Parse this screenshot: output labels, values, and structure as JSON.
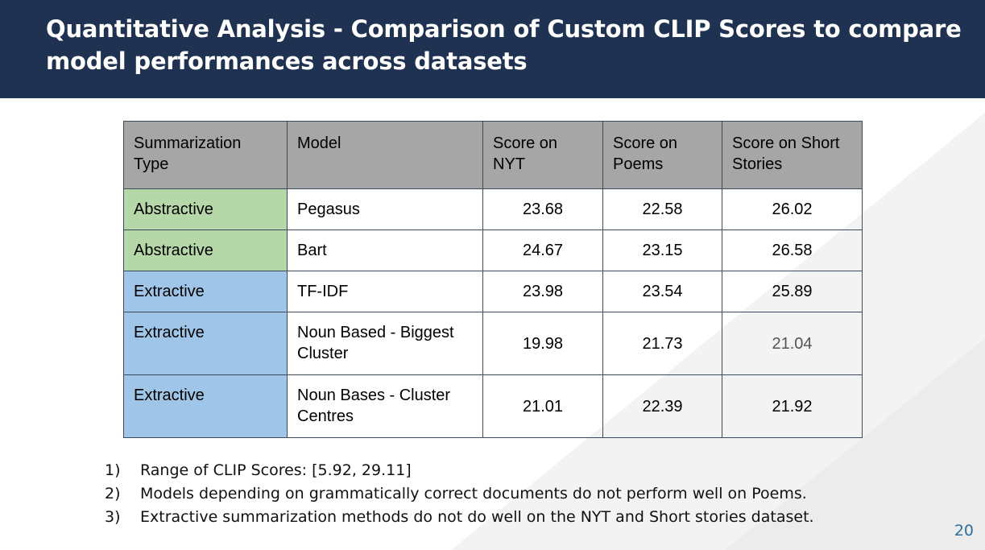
{
  "slide": {
    "title": "Quantitative Analysis - Comparison of Custom CLIP Scores to compare model performances across datasets",
    "page_number": "20"
  },
  "table": {
    "headers": [
      "Summarization Type",
      "Model",
      "Score on NYT",
      "Score on Poems",
      "Score on Short Stories"
    ],
    "rows": [
      {
        "type": "Abstractive",
        "model": "Pegasus",
        "nyt": "23.68",
        "poems": "22.58",
        "stories": "26.02"
      },
      {
        "type": "Abstractive",
        "model": "Bart",
        "nyt": "24.67",
        "poems": "23.15",
        "stories": "26.58"
      },
      {
        "type": "Extractive",
        "model": "TF-IDF",
        "nyt": "23.98",
        "poems": "23.54",
        "stories": "25.89"
      },
      {
        "type": "Extractive",
        "model": "Noun Based - Biggest Cluster",
        "nyt": "19.98",
        "poems": "21.73",
        "stories": "21.04"
      },
      {
        "type": "Extractive",
        "model": "Noun Bases - Cluster Centres",
        "nyt": "21.01",
        "poems": "22.39",
        "stories": "21.92"
      }
    ]
  },
  "notes": [
    {
      "marker": "1)",
      "text": "Range of CLIP Scores: [5.92, 29.11]"
    },
    {
      "marker": "2)",
      "text": "Models depending on grammatically correct documents do not perform well on Poems."
    },
    {
      "marker": "3)",
      "text": "Extractive summarization methods do not do well on the NYT and Short stories dataset."
    }
  ],
  "colors": {
    "header_bg": "#1f3251",
    "abstractive_cell": "#b6d7a8",
    "extractive_cell": "#9fc5e8",
    "table_header": "#a6a6a6",
    "page_number": "#2e6f9e"
  }
}
